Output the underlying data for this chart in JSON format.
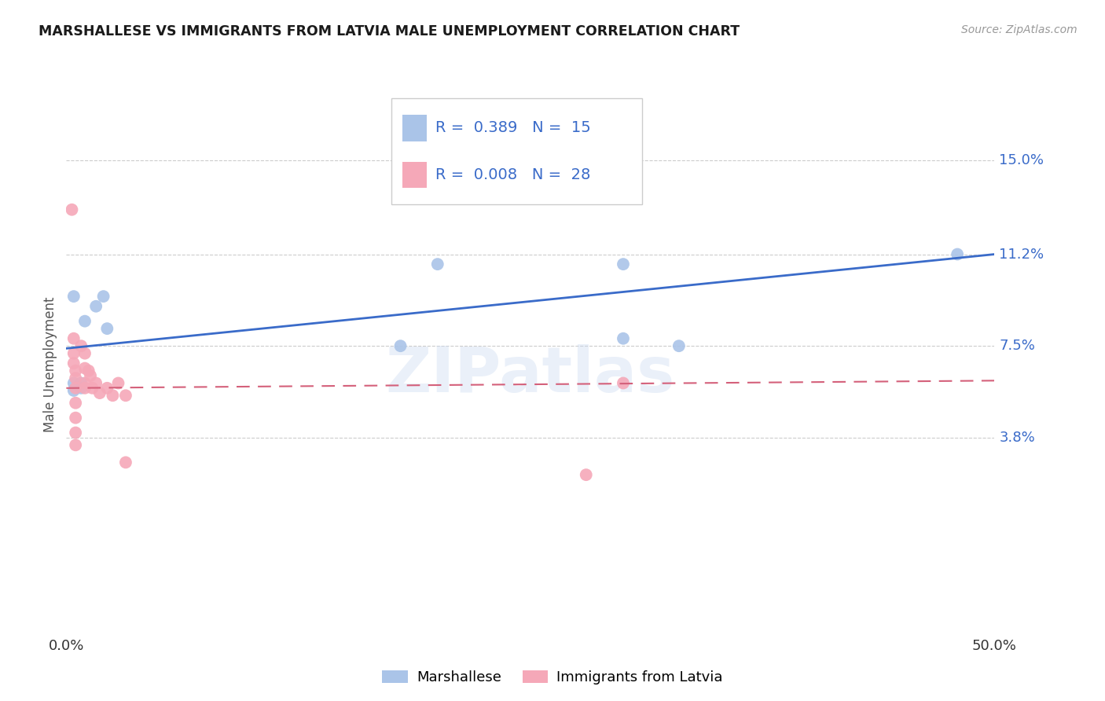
{
  "title": "MARSHALLESE VS IMMIGRANTS FROM LATVIA MALE UNEMPLOYMENT CORRELATION CHART",
  "source": "Source: ZipAtlas.com",
  "ylabel": "Male Unemployment",
  "xlim": [
    0.0,
    0.5
  ],
  "ylim": [
    -0.04,
    0.175
  ],
  "yticks": [
    0.038,
    0.075,
    0.112,
    0.15
  ],
  "ytick_labels": [
    "3.8%",
    "7.5%",
    "11.2%",
    "15.0%"
  ],
  "xticks": [
    0.0,
    0.1,
    0.2,
    0.3,
    0.4,
    0.5
  ],
  "xtick_labels": [
    "0.0%",
    "",
    "",
    "",
    "",
    "50.0%"
  ],
  "background_color": "#ffffff",
  "grid_color": "#cccccc",
  "marshallese_color": "#aac4e8",
  "latvia_color": "#f5a8b8",
  "blue_line_color": "#3a6bc9",
  "pink_line_color": "#d4607a",
  "label_color": "#3a6bc9",
  "watermark": "ZIPatlas",
  "marshallese_x": [
    0.004,
    0.01,
    0.016,
    0.02,
    0.022,
    0.004,
    0.004,
    0.008,
    0.008,
    0.18,
    0.2,
    0.48,
    0.3,
    0.33,
    0.3
  ],
  "marshallese_y": [
    0.095,
    0.085,
    0.091,
    0.095,
    0.082,
    0.06,
    0.057,
    0.06,
    0.058,
    0.075,
    0.108,
    0.112,
    0.108,
    0.075,
    0.078
  ],
  "latvia_x": [
    0.003,
    0.004,
    0.004,
    0.004,
    0.005,
    0.005,
    0.005,
    0.005,
    0.005,
    0.005,
    0.005,
    0.008,
    0.01,
    0.01,
    0.01,
    0.01,
    0.012,
    0.013,
    0.014,
    0.016,
    0.018,
    0.022,
    0.025,
    0.028,
    0.032,
    0.032,
    0.28,
    0.3
  ],
  "latvia_y": [
    0.13,
    0.078,
    0.072,
    0.068,
    0.065,
    0.062,
    0.058,
    0.052,
    0.046,
    0.04,
    0.035,
    0.075,
    0.072,
    0.066,
    0.06,
    0.058,
    0.065,
    0.063,
    0.058,
    0.06,
    0.056,
    0.058,
    0.055,
    0.06,
    0.055,
    0.028,
    0.023,
    0.06
  ],
  "blue_line_x": [
    0.0,
    0.5
  ],
  "blue_line_y": [
    0.074,
    0.112
  ],
  "pink_line_x": [
    0.0,
    0.5
  ],
  "pink_line_y": [
    0.058,
    0.061
  ]
}
